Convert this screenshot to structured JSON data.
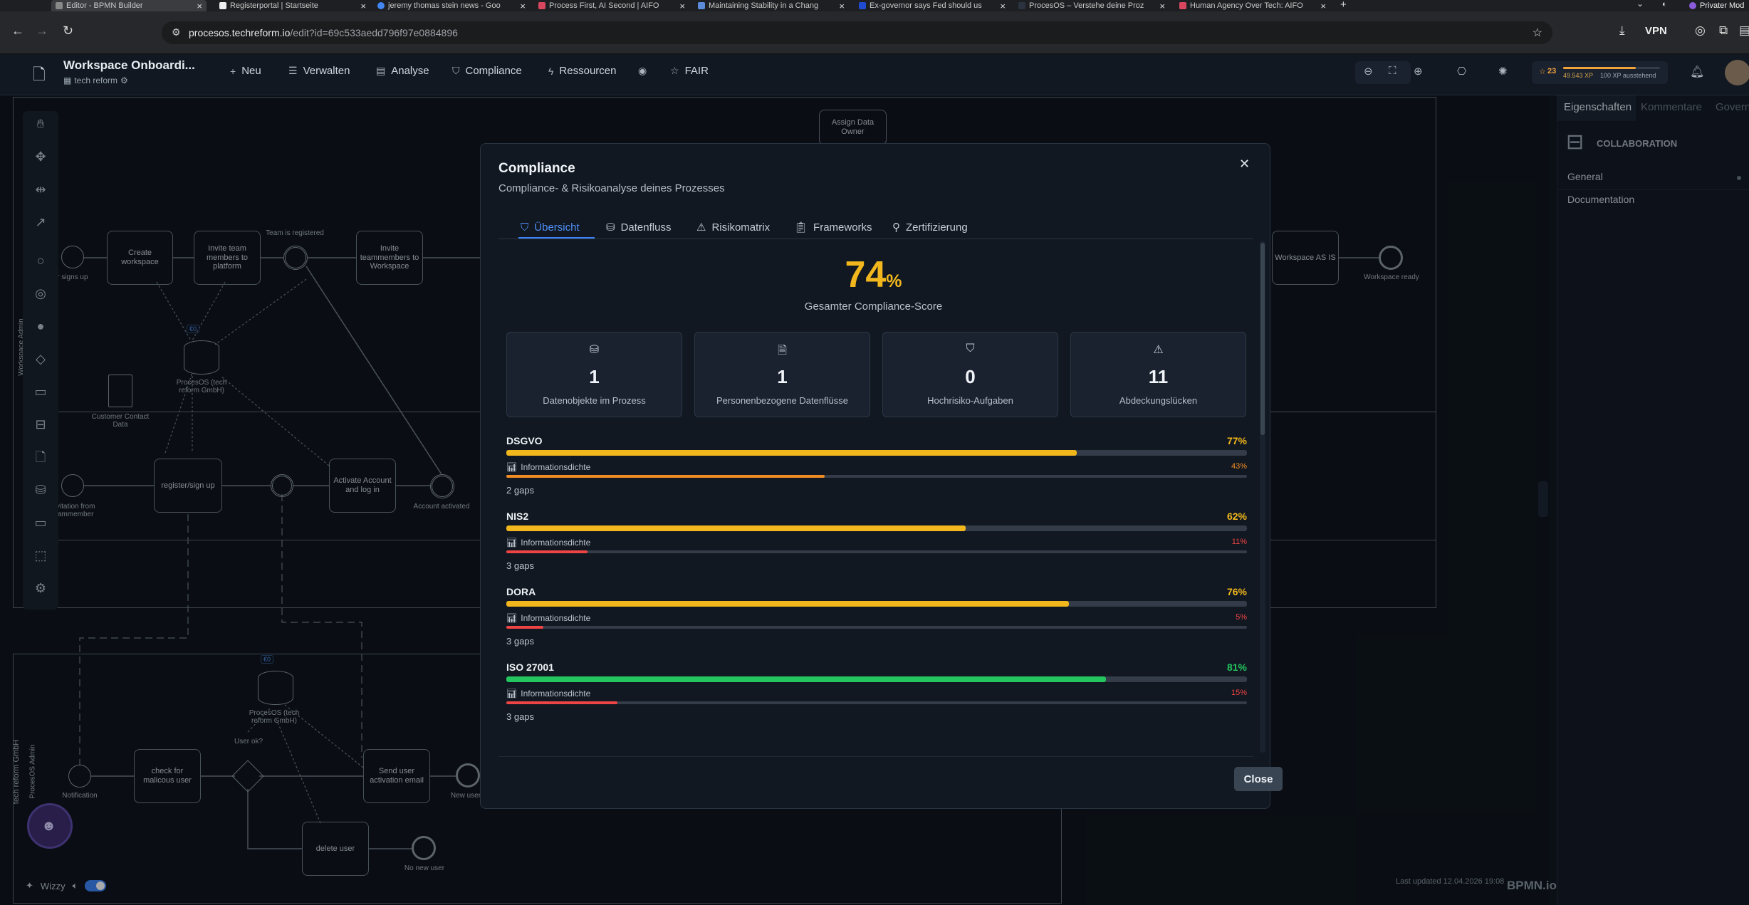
{
  "browser": {
    "tabs": [
      {
        "title": "Editor - BPMN Builder",
        "active": true
      },
      {
        "title": "Registerportal | Startseite"
      },
      {
        "title": "jeremy thomas stein news - Goo"
      },
      {
        "title": "Process First, AI Second | AIFO"
      },
      {
        "title": "Maintaining Stability in a Chang"
      },
      {
        "title": "Ex-governor says Fed should us"
      },
      {
        "title": "ProcesOS – Verstehe deine Proz"
      },
      {
        "title": "Human Agency Over Tech: AIFO"
      },
      {
        "title": "Privater Mod"
      }
    ],
    "url_prefix": "procesos.",
    "url_domain": "techreform.io",
    "url_path": "/edit?id=69c533aedd796f97e0884896",
    "vpn_label": "VPN"
  },
  "app": {
    "workspace_title": "Workspace Onboardi...",
    "org_name": "tech reform",
    "menu": [
      {
        "label": "Neu",
        "icon": "plus-icon"
      },
      {
        "label": "Verwalten",
        "icon": "list-icon"
      },
      {
        "label": "Analyse",
        "icon": "document-icon"
      },
      {
        "label": "Compliance",
        "icon": "shield-icon"
      },
      {
        "label": "Ressourcen",
        "icon": "lightning-icon"
      },
      {
        "label": "",
        "icon": "eye-icon"
      },
      {
        "label": "FAIR",
        "icon": "star-icon"
      }
    ],
    "xp_level": "23",
    "xp_text": "49.543 XP",
    "xp_remaining": "100 XP ausstehend"
  },
  "right_panel": {
    "tabs": [
      "Eigenschaften",
      "Kommentare",
      "Govern"
    ],
    "element_type": "COLLABORATION",
    "sections": [
      "General",
      "Documentation"
    ]
  },
  "diagram": {
    "pool1_label": "Workspace Admin",
    "pool2_label_org": "tech reform GmbH",
    "pool2_label_role": "ProcesOS Admin",
    "tasks": {
      "create_workspace": "Create workspace",
      "invite_team": "Invite team members to platform",
      "invite_teammembers": "Invite teammembers to Workspace",
      "assign_owner": "Assign Data Owner",
      "register": "register/sign up",
      "activate": "Activate Account and log in",
      "check_user": "check for malicous user",
      "send_activation": "Send user activation email",
      "delete_user": "delete user",
      "workspace_as_is": "Workspace AS IS"
    },
    "labels": {
      "user_signs_up": "User signs up",
      "team_registered": "Team is registered",
      "workspace_ready": "Workspace ready",
      "datastore1": "ProcesOS (tech reform GmbH)",
      "datastore2": "ProcesOS (tech reform GmbH)",
      "customer_contact": "Customer Contact Data",
      "invitation": "Invitation from teammember",
      "account_activated": "Account activated",
      "notification": "Notification",
      "user_ok": "User ok?",
      "new_user": "New user",
      "no_new_user": "No new user",
      "badge1": "€0",
      "badge2": "€0"
    }
  },
  "modal": {
    "title": "Compliance",
    "subtitle": "Compliance- & Risikoanalyse deines Prozesses",
    "tabs": [
      {
        "label": "Übersicht",
        "icon": "shield-check-icon",
        "active": true
      },
      {
        "label": "Datenfluss",
        "icon": "database-icon"
      },
      {
        "label": "Risikomatrix",
        "icon": "warning-icon"
      },
      {
        "label": "Frameworks",
        "icon": "clipboard-icon"
      },
      {
        "label": "Zertifizierung",
        "icon": "award-icon"
      }
    ],
    "score_value": "74",
    "score_unit": "%",
    "score_label": "Gesamter Compliance-Score",
    "stats": [
      {
        "value": "1",
        "label": "Datenobjekte im Prozess",
        "icon": "database-icon"
      },
      {
        "value": "1",
        "label": "Personenbezogene Datenflüsse",
        "icon": "file-icon"
      },
      {
        "value": "0",
        "label": "Hochrisiko-Aufgaben",
        "icon": "shield-alert-icon"
      },
      {
        "value": "11",
        "label": "Abdeckungslücken",
        "icon": "warning-icon"
      }
    ],
    "frameworks": [
      {
        "name": "DSGVO",
        "score": 77,
        "score_text": "77%",
        "color": "#f2b71c",
        "density_label": "Informationsdichte",
        "density": 43,
        "density_text": "43%",
        "density_color": "#f08a24",
        "gaps": "2 gaps"
      },
      {
        "name": "NIS2",
        "score": 62,
        "score_text": "62%",
        "color": "#f2b71c",
        "density_label": "Informationsdichte",
        "density": 11,
        "density_text": "11%",
        "density_color": "#ef4444",
        "gaps": "3 gaps"
      },
      {
        "name": "DORA",
        "score": 76,
        "score_text": "76%",
        "color": "#f2b71c",
        "density_label": "Informationsdichte",
        "density": 5,
        "density_text": "5%",
        "density_color": "#ef4444",
        "gaps": "3 gaps"
      },
      {
        "name": "ISO 27001",
        "score": 81,
        "score_text": "81%",
        "color": "#22c55e",
        "density_label": "Informationsdichte",
        "density": 15,
        "density_text": "15%",
        "density_color": "#ef4444",
        "gaps": "3 gaps"
      }
    ],
    "close_label": "Close"
  },
  "footer": {
    "last_updated": "Last updated 12.04.2026 19:08",
    "brand": "BPMN.io",
    "wizzy_label": "Wizzy"
  }
}
